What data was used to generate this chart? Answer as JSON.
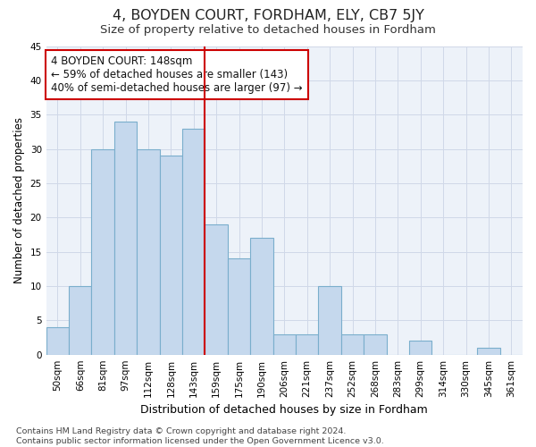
{
  "title": "4, BOYDEN COURT, FORDHAM, ELY, CB7 5JY",
  "subtitle": "Size of property relative to detached houses in Fordham",
  "xlabel": "Distribution of detached houses by size in Fordham",
  "ylabel": "Number of detached properties",
  "categories": [
    "50sqm",
    "66sqm",
    "81sqm",
    "97sqm",
    "112sqm",
    "128sqm",
    "143sqm",
    "159sqm",
    "175sqm",
    "190sqm",
    "206sqm",
    "221sqm",
    "237sqm",
    "252sqm",
    "268sqm",
    "283sqm",
    "299sqm",
    "314sqm",
    "330sqm",
    "345sqm",
    "361sqm"
  ],
  "values": [
    4,
    10,
    30,
    34,
    30,
    29,
    33,
    19,
    14,
    17,
    3,
    3,
    10,
    3,
    3,
    0,
    2,
    0,
    0,
    1,
    0
  ],
  "bar_color": "#c5d8ed",
  "bar_edge_color": "#7aaecc",
  "vline_x_index": 6,
  "vline_color": "#cc0000",
  "annotation_line1": "4 BOYDEN COURT: 148sqm",
  "annotation_line2": "← 59% of detached houses are smaller (143)",
  "annotation_line3": "40% of semi-detached houses are larger (97) →",
  "annotation_box_color": "#ffffff",
  "annotation_box_edge": "#cc0000",
  "ylim": [
    0,
    45
  ],
  "yticks": [
    0,
    5,
    10,
    15,
    20,
    25,
    30,
    35,
    40,
    45
  ],
  "grid_color": "#d0d8e8",
  "background_color": "#edf2f9",
  "footer": "Contains HM Land Registry data © Crown copyright and database right 2024.\nContains public sector information licensed under the Open Government Licence v3.0.",
  "title_fontsize": 11.5,
  "subtitle_fontsize": 9.5,
  "xlabel_fontsize": 9,
  "ylabel_fontsize": 8.5,
  "tick_fontsize": 7.5,
  "annotation_fontsize": 8.5,
  "footer_fontsize": 6.8
}
